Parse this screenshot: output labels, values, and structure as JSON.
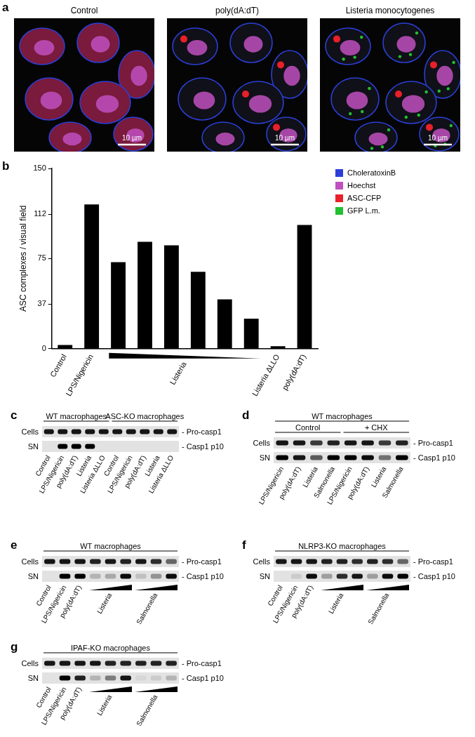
{
  "panel_a": {
    "label": "a",
    "images": [
      {
        "title": "Control",
        "scale_bar": "10 µm"
      },
      {
        "title": "poly(dA:dT)",
        "scale_bar": "10 µm"
      },
      {
        "title": "Listeria monocytogenes",
        "scale_bar": "10 µm"
      }
    ],
    "legend": [
      {
        "name": "CholeratoxinB",
        "color": "#2b3fd6"
      },
      {
        "name": "Hoechst",
        "color": "#c050c0"
      },
      {
        "name": "ASC-CFP",
        "color": "#e8202a"
      },
      {
        "name": "GFP L.m.",
        "color": "#22c030"
      }
    ]
  },
  "chart_data": {
    "label": "b",
    "type": "bar",
    "y_label": "ASC complexes / visual field",
    "categories": [
      "Control",
      "LPS/Nigericin",
      null,
      null,
      null,
      null,
      null,
      null,
      "Listeria ΔLLO",
      "poly(dA:dT)"
    ],
    "values": [
      3,
      120,
      72,
      89,
      86,
      64,
      41,
      25,
      2,
      103
    ],
    "color": "#000000",
    "ylim": [
      0,
      150
    ],
    "yticks": [
      0,
      37,
      75,
      112,
      150
    ],
    "grid": false,
    "groups": [
      {
        "label": "Listeria",
        "start": 2,
        "end": 7,
        "direction": "decreasing"
      }
    ]
  },
  "blots": [
    {
      "label": "c",
      "headers": [
        [
          {
            "label": "WT macrophages",
            "start": 0,
            "end": 4
          },
          {
            "label": "ASC-KO macrophages",
            "start": 5,
            "end": 9
          }
        ]
      ],
      "lanes": [
        "Control",
        "LPS/Nigericin",
        "poly(dA:dT)",
        "Listeria",
        "Listeria ΔLLO",
        "Control",
        "LPS/Nigericin",
        "poly(dA:dT)",
        "Listeria",
        "Listeria ΔLLO"
      ],
      "groups": [],
      "rows": [
        {
          "name": "Cells",
          "band": "- Pro-casp1",
          "intensity": [
            0.9,
            0.9,
            0.9,
            0.9,
            0.9,
            0.9,
            0.9,
            0.9,
            0.9,
            0.9
          ]
        },
        {
          "name": "SN",
          "band": "- Casp1 p10",
          "intensity": [
            0,
            1,
            1,
            1,
            0,
            0,
            0,
            0,
            0,
            0
          ]
        }
      ]
    },
    {
      "label": "d",
      "headers": [
        [
          {
            "label": "WT macrophages",
            "start": 0,
            "end": 7
          }
        ],
        [
          {
            "label": "Control",
            "start": 0,
            "end": 3
          },
          {
            "label": "+ CHX",
            "start": 4,
            "end": 7
          }
        ]
      ],
      "lanes": [
        "LPS/Nigericin",
        "poly(dA:dT)",
        "Listeria",
        "Salmonella",
        "LPS/Nigericin",
        "poly(dA:dT)",
        "Listeria",
        "Salmonella"
      ],
      "groups": [],
      "rows": [
        {
          "name": "Cells",
          "band": "- Pro-casp1",
          "intensity": [
            0.9,
            0.9,
            0.75,
            0.85,
            0.9,
            0.9,
            0.75,
            0.85
          ]
        },
        {
          "name": "SN",
          "band": "- Casp1 p10",
          "intensity": [
            1,
            0.9,
            0.6,
            1,
            1,
            0.95,
            0.5,
            1
          ]
        }
      ]
    },
    {
      "label": "e",
      "headers": [
        [
          {
            "label": "WT macrophages",
            "start": 0,
            "end": 8
          }
        ]
      ],
      "lanes": [
        "Control",
        "LPS/Nigericin",
        "poly(dA:dT)",
        null,
        null,
        null,
        null,
        null,
        null
      ],
      "groups": [
        {
          "label": "Listeria",
          "start": 3,
          "end": 5,
          "direction": "increasing"
        },
        {
          "label": "Salmonella",
          "start": 6,
          "end": 8,
          "direction": "increasing"
        }
      ],
      "rows": [
        {
          "name": "Cells",
          "band": "- Pro-casp1",
          "intensity": [
            0.9,
            0.9,
            0.9,
            0.85,
            0.9,
            0.85,
            0.9,
            0.8,
            0.55
          ]
        },
        {
          "name": "SN",
          "band": "- Casp1 p10",
          "intensity": [
            0,
            1,
            1,
            0.2,
            0.25,
            0.95,
            0.15,
            0.35,
            0.95
          ]
        }
      ]
    },
    {
      "label": "f",
      "headers": [
        [
          {
            "label": "NLRP3-KO macrophages",
            "start": 0,
            "end": 8
          }
        ]
      ],
      "lanes": [
        "Control",
        "LPS/Nigericin",
        "poly(dA:dT)",
        null,
        null,
        null,
        null,
        null,
        null
      ],
      "groups": [
        {
          "label": "Listeria",
          "start": 3,
          "end": 5,
          "direction": "increasing"
        },
        {
          "label": "Salmonella",
          "start": 6,
          "end": 8,
          "direction": "increasing"
        }
      ],
      "rows": [
        {
          "name": "Cells",
          "band": "- Pro-casp1",
          "intensity": [
            0.9,
            0.9,
            0.9,
            0.85,
            0.85,
            0.8,
            0.85,
            0.8,
            0.55
          ]
        },
        {
          "name": "SN",
          "band": "- Casp1 p10",
          "intensity": [
            0,
            0.1,
            0.95,
            0.3,
            0.8,
            0.9,
            0.3,
            0.95,
            1
          ]
        }
      ]
    },
    {
      "label": "g",
      "headers": [
        [
          {
            "label": "IPAF-KO macrophages",
            "start": 0,
            "end": 8
          }
        ]
      ],
      "lanes": [
        "Control",
        "LPS/Nigericin",
        "poly(dA:dT)",
        null,
        null,
        null,
        null,
        null,
        null
      ],
      "groups": [
        {
          "label": "Listeria",
          "start": 3,
          "end": 5,
          "direction": "increasing"
        },
        {
          "label": "Salmonella",
          "start": 6,
          "end": 8,
          "direction": "increasing"
        }
      ],
      "rows": [
        {
          "name": "Cells",
          "band": "- Pro-casp1",
          "intensity": [
            0.9,
            0.9,
            0.9,
            0.9,
            0.85,
            0.85,
            0.85,
            0.85,
            0.85
          ]
        },
        {
          "name": "SN",
          "band": "- Casp1 p10",
          "intensity": [
            0,
            1,
            0.85,
            0.2,
            0.45,
            0.9,
            0.05,
            0.1,
            0.2
          ]
        }
      ]
    }
  ]
}
